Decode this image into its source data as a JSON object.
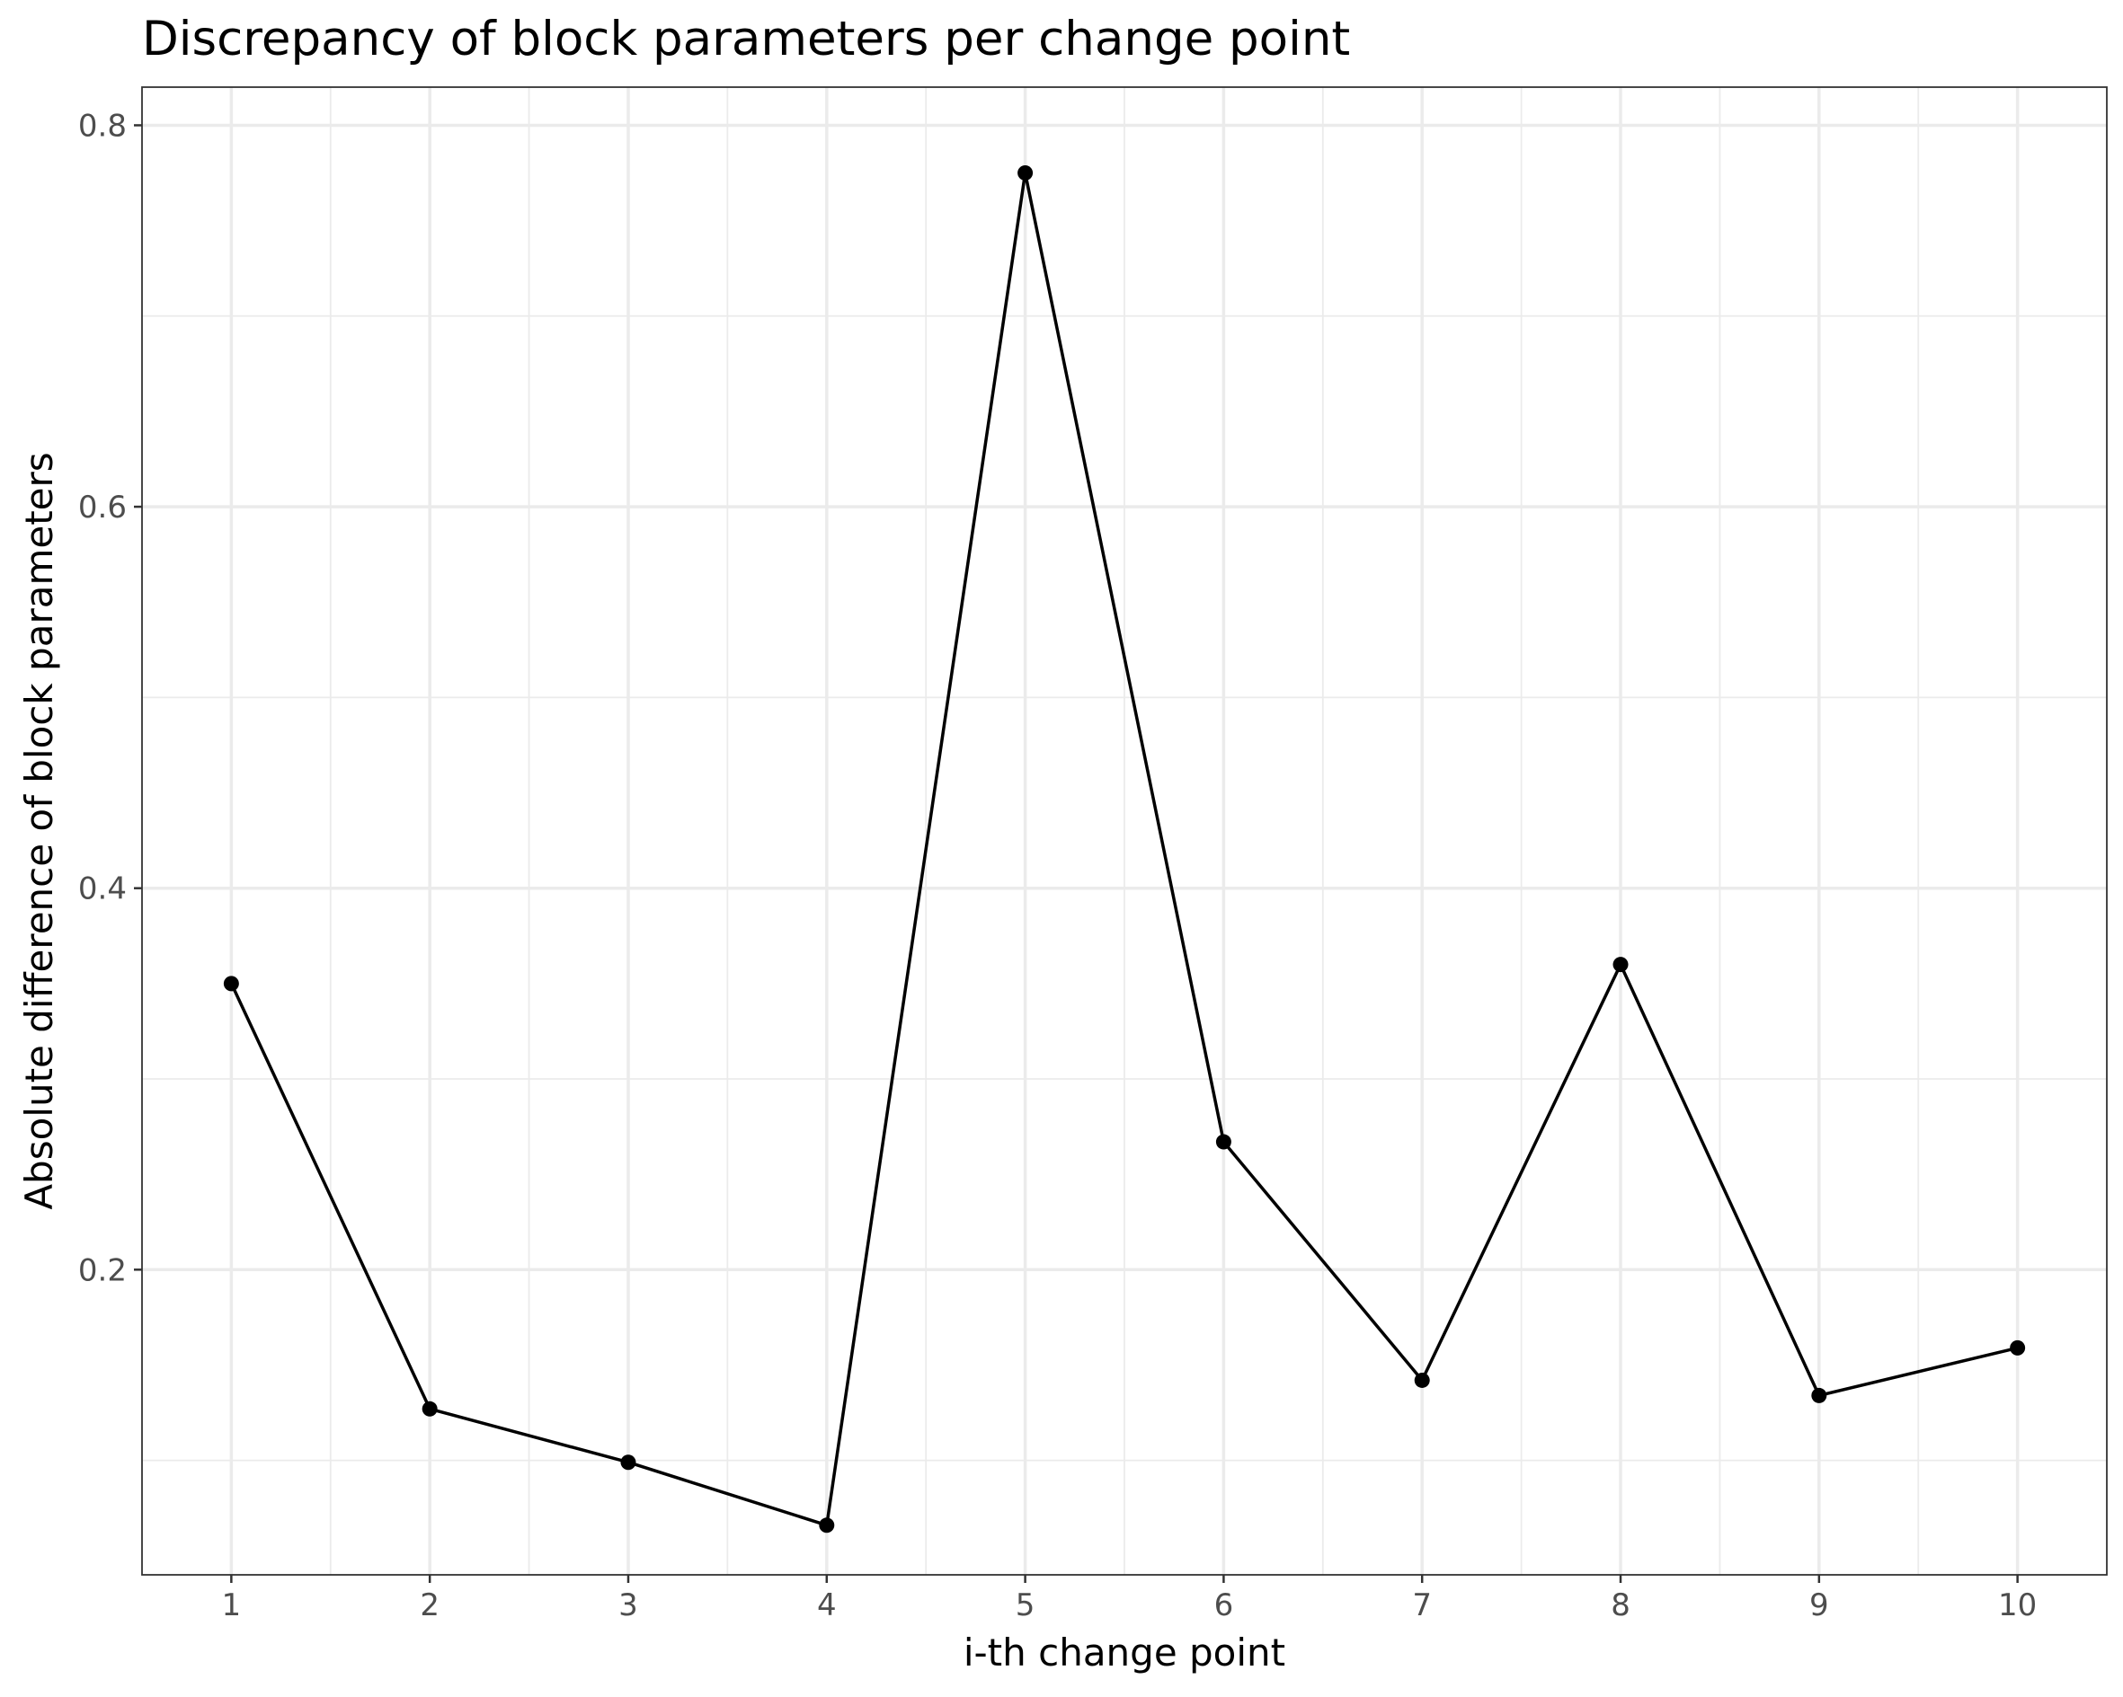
{
  "chart_data": {
    "type": "line",
    "title": "Discrepancy of block parameters per change point",
    "xlabel": "i-th change point",
    "ylabel": "Absolute difference of block parameters",
    "x": [
      1,
      2,
      3,
      4,
      5,
      6,
      7,
      8,
      9,
      10
    ],
    "x_ticks": [
      "1",
      "2",
      "3",
      "4",
      "5",
      "6",
      "7",
      "8",
      "9",
      "10"
    ],
    "y_ticks": [
      "0.2",
      "0.4",
      "0.6",
      "0.8"
    ],
    "y_tick_values": [
      0.2,
      0.4,
      0.6,
      0.8
    ],
    "series": [
      {
        "values": [
          0.35,
          0.127,
          0.099,
          0.066,
          0.775,
          0.267,
          0.142,
          0.36,
          0.134,
          0.159
        ],
        "color": "#000000"
      }
    ],
    "xlim": [
      0.55,
      10.45
    ],
    "ylim": [
      0.04,
      0.82
    ],
    "grid": true
  }
}
